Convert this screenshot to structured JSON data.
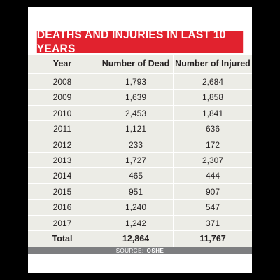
{
  "title": "DEATHS AND INJURIES IN LAST 10 YEARS",
  "headers": [
    "Year",
    "Number of Dead",
    "Number of Injured"
  ],
  "rows": [
    [
      "2008",
      "1,793",
      "2,684"
    ],
    [
      "2009",
      "1,639",
      "1,858"
    ],
    [
      "2010",
      "2,453",
      "1,841"
    ],
    [
      "2011",
      "1,121",
      "636"
    ],
    [
      "2012",
      "233",
      "172"
    ],
    [
      "2013",
      "1,727",
      "2,307"
    ],
    [
      "2014",
      "465",
      "444"
    ],
    [
      "2015",
      "951",
      "907"
    ],
    [
      "2016",
      "1,240",
      "547"
    ],
    [
      "2017",
      "1,242",
      "371"
    ]
  ],
  "total": [
    "Total",
    "12,864",
    "11,767"
  ],
  "source": {
    "label": "SOURCE:",
    "name": "OSHE"
  },
  "colors": {
    "title_bg": "#e1222e",
    "table_bg": "#ecece6",
    "source_bg": "#7d7e80"
  },
  "chart_data": {
    "type": "table",
    "title": "DEATHS AND INJURIES IN LAST 10 YEARS",
    "columns": [
      "Year",
      "Number of Dead",
      "Number of Injured"
    ],
    "categories": [
      "2008",
      "2009",
      "2010",
      "2011",
      "2012",
      "2013",
      "2014",
      "2015",
      "2016",
      "2017"
    ],
    "series": [
      {
        "name": "Number of Dead",
        "values": [
          1793,
          1639,
          2453,
          1121,
          233,
          1727,
          465,
          951,
          1240,
          1242
        ]
      },
      {
        "name": "Number of Injured",
        "values": [
          2684,
          1858,
          1841,
          636,
          172,
          2307,
          444,
          907,
          547,
          371
        ]
      }
    ],
    "totals": {
      "Number of Dead": 12864,
      "Number of Injured": 11767
    }
  }
}
